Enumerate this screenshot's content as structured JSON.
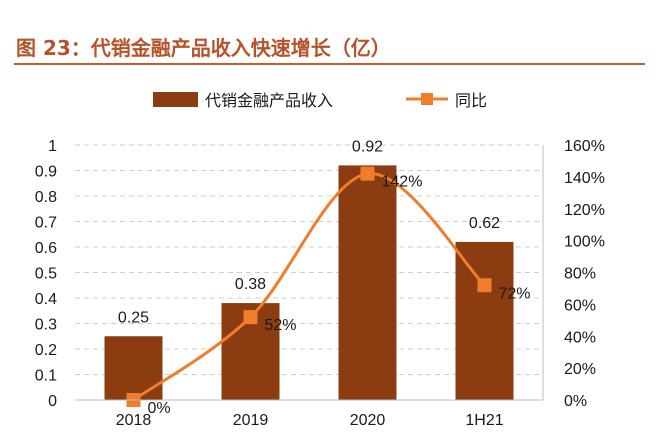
{
  "figure_title": "图 23：代销金融产品收入快速增长（亿）",
  "colors": {
    "title": "#b5532a",
    "bar": "#8b3c10",
    "line": "#ef7d2b",
    "grid": "#cfcfcf"
  },
  "chart_data": {
    "type": "bar",
    "categories": [
      "2018",
      "2019",
      "2020",
      "1H21"
    ],
    "series": [
      {
        "name": "代销金融产品收入",
        "type": "bar",
        "axis": "left",
        "values": [
          0.25,
          0.38,
          0.92,
          0.62
        ],
        "labels": [
          "0.25",
          "0.38",
          "0.92",
          "0.62"
        ]
      },
      {
        "name": "同比",
        "type": "line",
        "axis": "right",
        "smooth": true,
        "values": [
          0,
          52,
          142,
          72
        ],
        "labels": [
          "0%",
          "52%",
          "142%",
          "72%"
        ]
      }
    ],
    "y_left": {
      "ylim": [
        0,
        1
      ],
      "ticks": [
        "0",
        "0.1",
        "0.2",
        "0.3",
        "0.4",
        "0.5",
        "0.6",
        "0.7",
        "0.8",
        "0.9",
        "1"
      ]
    },
    "y_right": {
      "ylim": [
        0,
        160
      ],
      "unit": "%",
      "ticks": [
        "0%",
        "20%",
        "40%",
        "60%",
        "80%",
        "100%",
        "120%",
        "140%",
        "160%"
      ]
    },
    "grid": true,
    "legend": "top-center"
  }
}
